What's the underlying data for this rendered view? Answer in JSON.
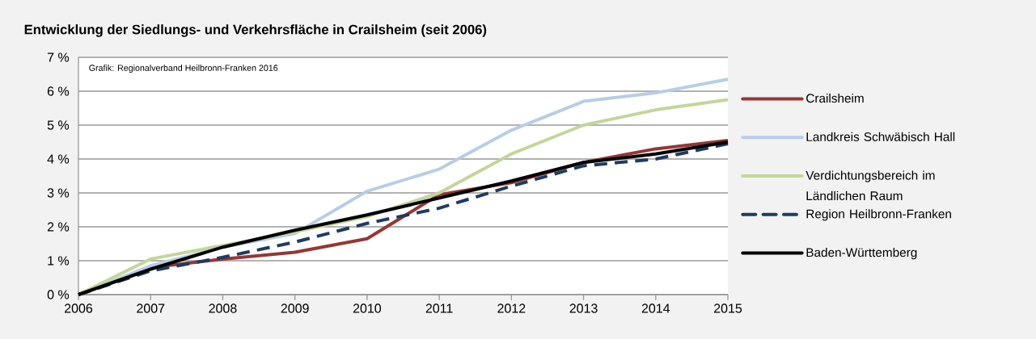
{
  "chart_data": {
    "type": "line",
    "title": "Entwicklung der Siedlungs- und Verkehrsfläche in Crailsheim (seit 2006)",
    "annotations": [
      "Grafik: Regionalverband Heilbronn-Franken 2016"
    ],
    "x": [
      2006,
      2007,
      2008,
      2009,
      2010,
      2011,
      2012,
      2013,
      2014,
      2015
    ],
    "series": [
      {
        "name": "Crailsheim",
        "color": "#953735",
        "values": [
          0,
          0.8,
          1.05,
          1.25,
          1.65,
          2.95,
          3.3,
          3.9,
          4.3,
          4.55
        ]
      },
      {
        "name": "Landkreis Schwäbisch Hall",
        "color": "#b9cde5",
        "values": [
          0,
          0.85,
          1.4,
          1.8,
          3.05,
          3.7,
          4.85,
          5.7,
          5.95,
          6.35
        ]
      },
      {
        "name": "Verdichtungsbereich im Ländlichen Raum",
        "color": "#c3d69b",
        "values": [
          0,
          1.05,
          1.45,
          1.85,
          2.3,
          3.0,
          4.15,
          5.0,
          5.45,
          5.75
        ]
      },
      {
        "name": "Region Heilbronn-Franken",
        "color": "#1f3b60",
        "line_style": "dashed",
        "values": [
          0,
          0.7,
          1.1,
          1.55,
          2.1,
          2.55,
          3.2,
          3.8,
          4.0,
          4.45
        ]
      },
      {
        "name": "Baden-Württemberg",
        "color": "#000000",
        "values": [
          0,
          0.75,
          1.4,
          1.9,
          2.35,
          2.85,
          3.35,
          3.9,
          4.15,
          4.5
        ]
      }
    ],
    "xlim": [
      2006,
      2015
    ],
    "xticks": [
      2006,
      2007,
      2008,
      2009,
      2010,
      2011,
      2012,
      2013,
      2014,
      2015
    ],
    "ylim": [
      0,
      7
    ],
    "yticks": [
      {
        "value": 0,
        "label": "0 %"
      },
      {
        "value": 1,
        "label": "1 %"
      },
      {
        "value": 2,
        "label": "2 %"
      },
      {
        "value": 3,
        "label": "3 %"
      },
      {
        "value": 4,
        "label": "4 %"
      },
      {
        "value": 5,
        "label": "5 %"
      },
      {
        "value": 6,
        "label": "6 %"
      },
      {
        "value": 7,
        "label": "7 %"
      }
    ],
    "grid": "y",
    "legend": "right",
    "marker": "none",
    "line_style": "solid"
  }
}
